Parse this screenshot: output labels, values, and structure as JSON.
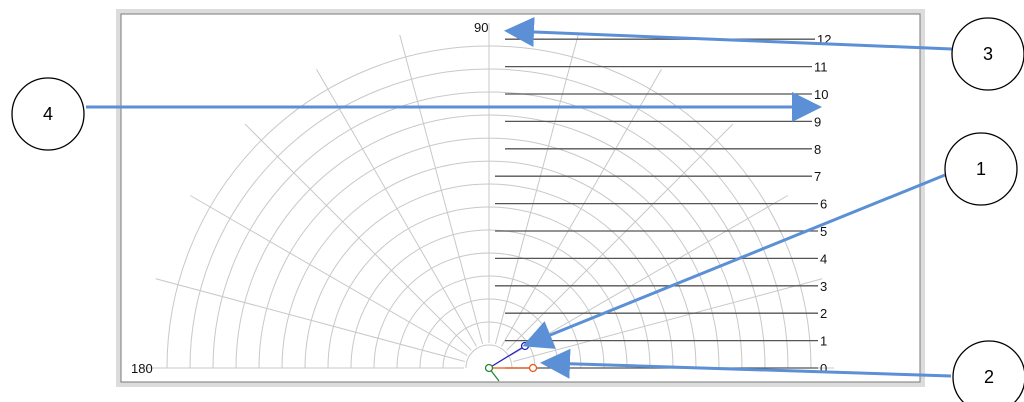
{
  "plot": {
    "angle_labels": {
      "top": "90",
      "left": "180"
    },
    "ring_labels": [
      "0",
      "1",
      "2",
      "3",
      "4",
      "5",
      "6",
      "7",
      "8",
      "9",
      "10",
      "11",
      "12"
    ],
    "colors": {
      "grid": "#c8c8c8",
      "tick_lines": "#555555",
      "vector_blue": "#2222bb",
      "vector_orange": "#ee5511",
      "origin_green": "#228833",
      "arrow": "#5b8fd6"
    }
  },
  "callouts": [
    {
      "id": "1",
      "label": "1"
    },
    {
      "id": "2",
      "label": "2"
    },
    {
      "id": "3",
      "label": "3"
    },
    {
      "id": "4",
      "label": "4"
    }
  ]
}
